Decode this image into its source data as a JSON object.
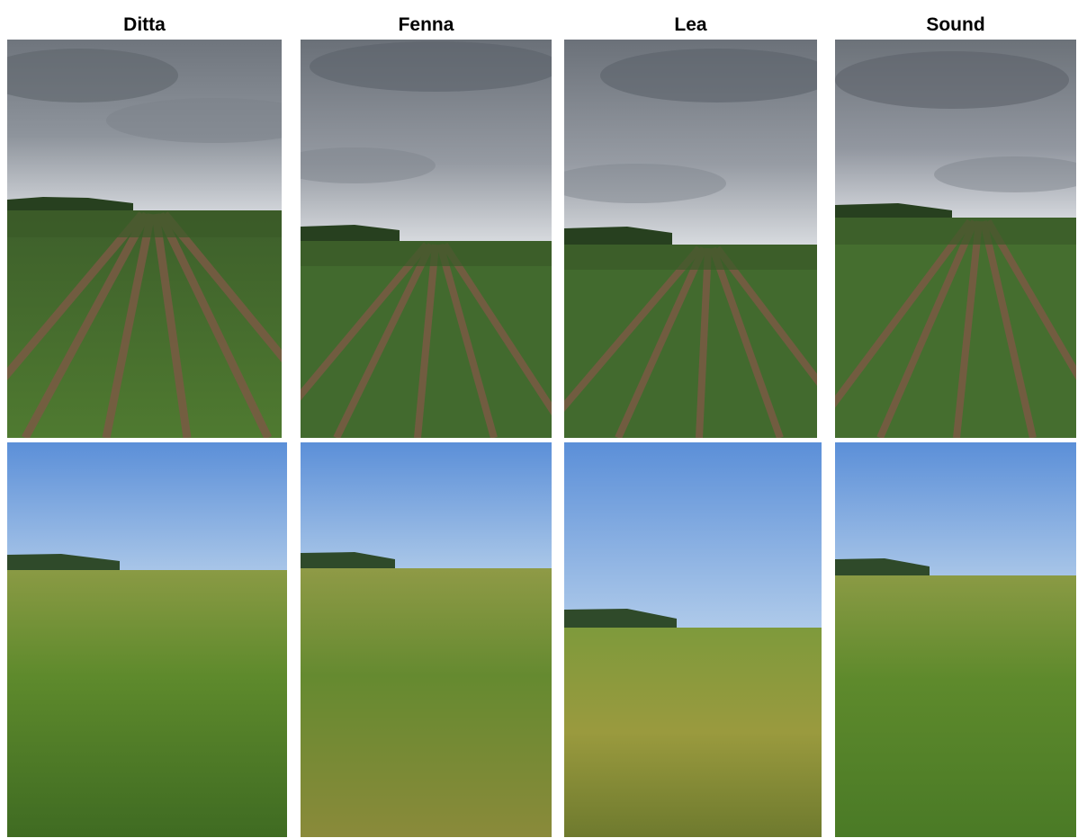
{
  "columns": [
    {
      "label": "Ditta"
    },
    {
      "label": "Fenna"
    },
    {
      "label": "Lea"
    },
    {
      "label": "Sound"
    }
  ],
  "photos": {
    "top_row": {
      "sky": "overcast",
      "subject": "potato field rows, green plants"
    },
    "bottom_row": {
      "sky": "clear blue",
      "subject": "dense potato canopy"
    }
  },
  "colors": {
    "cloud_dark": "#6f757d",
    "cloud_light": "#c9ccd1",
    "clear_sky_top": "#5b8fd8",
    "clear_sky_bottom": "#a9c6e8",
    "crop_green": "#3f6b2a",
    "soil": "#7a5a44",
    "canopy_green": "#5e8a2c",
    "canopy_yellow": "#9a9a3e"
  }
}
